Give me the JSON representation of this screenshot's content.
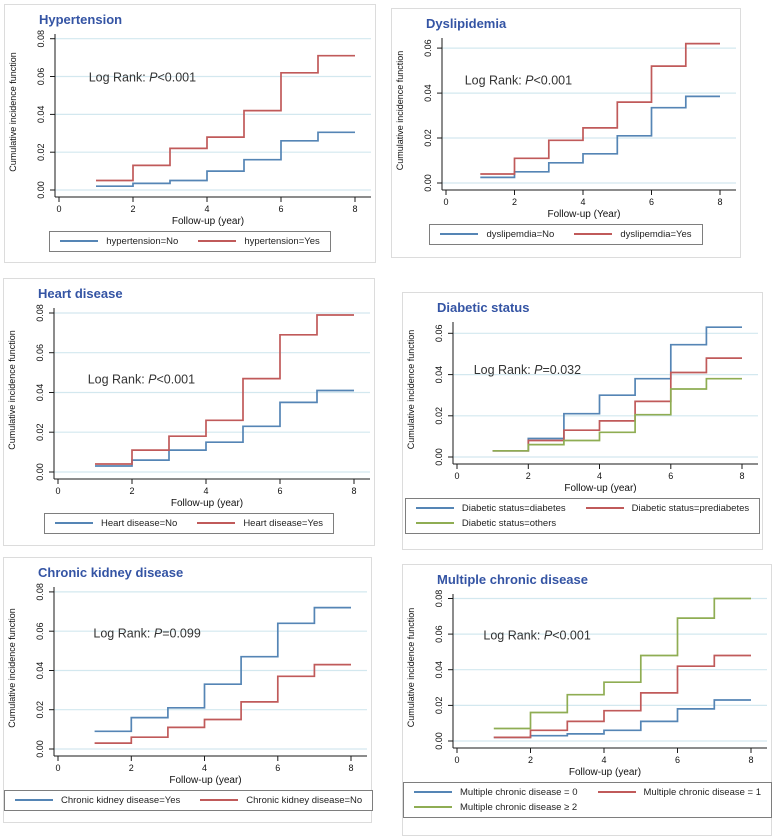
{
  "colors": {
    "series_blue": "#5585b5",
    "series_red": "#c05a5a",
    "series_green": "#8fad53",
    "title_blue": "#3454a4",
    "grid": "#d3e8ef",
    "axis": "#1a1a1a",
    "annotation_text": "#333333",
    "legend_border": "#7e7e7e",
    "panel_border": "#dcdcdc"
  },
  "chart_data": [
    {
      "id": "hypertension",
      "type": "line",
      "subtype": "step-cumulative-incidence",
      "title": "Hypertension",
      "log_rank": {
        "prefix": "Log Rank: ",
        "p": "P",
        "value": "<0.001",
        "pos": [
          0.11,
          0.24
        ]
      },
      "xlabel": "Follow-up (year)",
      "ylabel": "Cumulative incidence function",
      "xlim": [
        0,
        8
      ],
      "xticks": [
        0,
        2,
        4,
        6,
        8
      ],
      "ylim": [
        0,
        0.0825
      ],
      "ytick_values": [
        0,
        0.02,
        0.04,
        0.06,
        0.08
      ],
      "ytick_labels": [
        "0.00",
        "0.02",
        "0.04",
        "0.06",
        "0.08"
      ],
      "step_years": [
        1,
        2,
        3,
        4,
        5,
        6,
        7
      ],
      "x_end": 8,
      "grid": true,
      "legend_position": "bottom",
      "series": [
        {
          "name": "hypertension=No",
          "color": "#5585b5",
          "values": [
            0.002,
            0.0035,
            0.005,
            0.01,
            0.016,
            0.026,
            0.0305
          ]
        },
        {
          "name": "hypertension=Yes",
          "color": "#c05a5a",
          "values": [
            0.005,
            0.013,
            0.022,
            0.028,
            0.042,
            0.062,
            0.071
          ]
        }
      ]
    },
    {
      "id": "dyslipidemia",
      "type": "line",
      "subtype": "step-cumulative-incidence",
      "title": "Dyslipidemia",
      "log_rank": {
        "prefix": "Log Rank: ",
        "p": "P",
        "value": "<0.001",
        "pos": [
          0.08,
          0.25
        ]
      },
      "xlabel": "Follow-up (Year)",
      "ylabel": "Cumulative incidence function",
      "xlim": [
        0,
        8
      ],
      "xticks": [
        0,
        2,
        4,
        6,
        8
      ],
      "ylim": [
        0,
        0.0645
      ],
      "ytick_values": [
        0,
        0.02,
        0.04,
        0.06
      ],
      "ytick_labels": [
        "0.00",
        "0.02",
        "0.04",
        "0.06"
      ],
      "step_years": [
        1,
        2,
        3,
        4,
        5,
        6,
        7
      ],
      "x_end": 8,
      "grid": true,
      "legend_position": "bottom",
      "series": [
        {
          "name": "dyslipemdia=No",
          "color": "#5585b5",
          "values": [
            0.0025,
            0.005,
            0.009,
            0.013,
            0.021,
            0.0335,
            0.0385
          ]
        },
        {
          "name": "dyslipemdia=Yes",
          "color": "#c05a5a",
          "values": [
            0.004,
            0.011,
            0.019,
            0.0245,
            0.036,
            0.052,
            0.062
          ]
        }
      ]
    },
    {
      "id": "heart-disease",
      "type": "line",
      "subtype": "step-cumulative-incidence",
      "title": "Heart disease",
      "log_rank": {
        "prefix": "Log Rank: ",
        "p": "P",
        "value": "<0.001",
        "pos": [
          0.11,
          0.4
        ]
      },
      "xlabel": "Follow-up (year)",
      "ylabel": "Cumulative incidence function",
      "xlim": [
        0,
        8
      ],
      "xticks": [
        0,
        2,
        4,
        6,
        8
      ],
      "ylim": [
        0,
        0.0825
      ],
      "ytick_values": [
        0,
        0.02,
        0.04,
        0.06,
        0.08
      ],
      "ytick_labels": [
        "0.00",
        "0.02",
        "0.04",
        "0.06",
        "0.08"
      ],
      "step_years": [
        1,
        2,
        3,
        4,
        5,
        6,
        7
      ],
      "x_end": 8,
      "grid": true,
      "legend_position": "bottom",
      "series": [
        {
          "name": "Heart disease=No",
          "color": "#5585b5",
          "values": [
            0.003,
            0.006,
            0.011,
            0.015,
            0.023,
            0.035,
            0.041
          ]
        },
        {
          "name": "Heart disease=Yes",
          "color": "#c05a5a",
          "values": [
            0.004,
            0.011,
            0.018,
            0.026,
            0.047,
            0.069,
            0.079
          ]
        }
      ]
    },
    {
      "id": "diabetic-status",
      "type": "line",
      "subtype": "step-cumulative-incidence",
      "title": "Diabetic status",
      "log_rank": {
        "prefix": "Log Rank: ",
        "p": "P",
        "value": "=0.032",
        "pos": [
          0.07,
          0.31
        ]
      },
      "xlabel": "Follow-up (year)",
      "ylabel": "Cumulative incidence function",
      "xlim": [
        0,
        8
      ],
      "xticks": [
        0,
        2,
        4,
        6,
        8
      ],
      "ylim": [
        0,
        0.0655
      ],
      "ytick_values": [
        0,
        0.02,
        0.04,
        0.06
      ],
      "ytick_labels": [
        "0.00",
        "0.02",
        "0.04",
        "0.06"
      ],
      "step_years": [
        1,
        2,
        3,
        4,
        5,
        6,
        7
      ],
      "x_end": 8,
      "grid": true,
      "legend_position": "bottom",
      "series": [
        {
          "name": "Diabetic status=diabetes",
          "color": "#5585b5",
          "values": [
            0.003,
            0.009,
            0.021,
            0.03,
            0.038,
            0.0545,
            0.063
          ]
        },
        {
          "name": "Diabetic status=prediabetes",
          "color": "#c05a5a",
          "values": [
            0.003,
            0.008,
            0.013,
            0.0175,
            0.027,
            0.041,
            0.048
          ]
        },
        {
          "name": "Diabetic status=others",
          "color": "#8fad53",
          "values": [
            0.003,
            0.006,
            0.008,
            0.012,
            0.0205,
            0.033,
            0.038
          ]
        }
      ]
    },
    {
      "id": "chronic-kidney-disease",
      "type": "line",
      "subtype": "step-cumulative-incidence",
      "title": "Chronic kidney disease",
      "log_rank": {
        "prefix": "Log Rank: ",
        "p": "P",
        "value": "=0.099",
        "pos": [
          0.13,
          0.25
        ]
      },
      "xlabel": "Follow-up (year)",
      "ylabel": "Cumulative incidence function",
      "xlim": [
        0,
        8
      ],
      "xticks": [
        0,
        2,
        4,
        6,
        8
      ],
      "ylim": [
        0,
        0.0825
      ],
      "ytick_values": [
        0,
        0.02,
        0.04,
        0.06,
        0.08
      ],
      "ytick_labels": [
        "0.00",
        "0.02",
        "0.04",
        "0.06",
        "0.08"
      ],
      "step_years": [
        1,
        2,
        3,
        4,
        5,
        6,
        7
      ],
      "x_end": 8,
      "grid": true,
      "legend_position": "bottom",
      "series": [
        {
          "name": "Chronic kidney disease=Yes",
          "color": "#5585b5",
          "values": [
            0.009,
            0.016,
            0.021,
            0.033,
            0.047,
            0.064,
            0.072
          ]
        },
        {
          "name": "Chronic kidney disease=No",
          "color": "#c05a5a",
          "values": [
            0.003,
            0.006,
            0.011,
            0.015,
            0.024,
            0.037,
            0.043
          ]
        }
      ]
    },
    {
      "id": "multiple-chronic-disease",
      "type": "line",
      "subtype": "step-cumulative-incidence",
      "title": "Multiple chronic disease",
      "log_rank": {
        "prefix": "Log Rank: ",
        "p": "P",
        "value": "<0.001",
        "pos": [
          0.1,
          0.24
        ]
      },
      "xlabel": "Follow-up (year)",
      "ylabel": "Cumulative incidence function",
      "xlim": [
        0,
        8
      ],
      "xticks": [
        0,
        2,
        4,
        6,
        8
      ],
      "ylim": [
        0,
        0.0825
      ],
      "ytick_values": [
        0,
        0.02,
        0.04,
        0.06,
        0.08
      ],
      "ytick_labels": [
        "0.00",
        "0.02",
        "0.04",
        "0.06",
        "0.08"
      ],
      "step_years": [
        1,
        2,
        3,
        4,
        5,
        6,
        7
      ],
      "x_end": 8,
      "grid": true,
      "legend_position": "bottom",
      "series": [
        {
          "name": "Multiple chronic disease = 0",
          "color": "#5585b5",
          "values": [
            0.002,
            0.003,
            0.004,
            0.006,
            0.011,
            0.018,
            0.023
          ]
        },
        {
          "name": "Multiple chronic disease = 1",
          "color": "#c05a5a",
          "values": [
            0.002,
            0.006,
            0.011,
            0.017,
            0.027,
            0.042,
            0.048
          ]
        },
        {
          "name": "Multiple chronic disease ≥ 2",
          "color": "#8fad53",
          "values": [
            0.007,
            0.016,
            0.026,
            0.033,
            0.048,
            0.069,
            0.08
          ]
        }
      ]
    }
  ]
}
